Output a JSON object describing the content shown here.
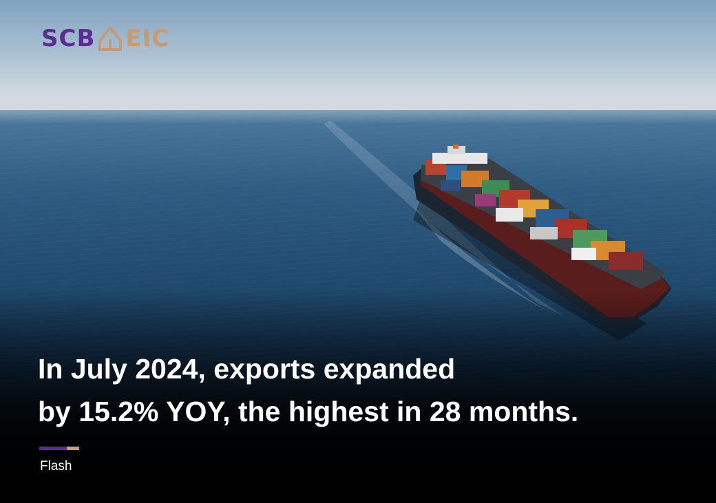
{
  "brand": {
    "left": "SCB",
    "right": "EIC",
    "colors": {
      "purple": "#5b2d90",
      "gold": "#c79a72"
    }
  },
  "headline": {
    "line1": "In July 2024, exports expanded",
    "line2": "by 15.2% YOY, the highest in 28 months."
  },
  "category": "Flash",
  "scene": {
    "subject": "container-ship",
    "background": "open-sea"
  }
}
